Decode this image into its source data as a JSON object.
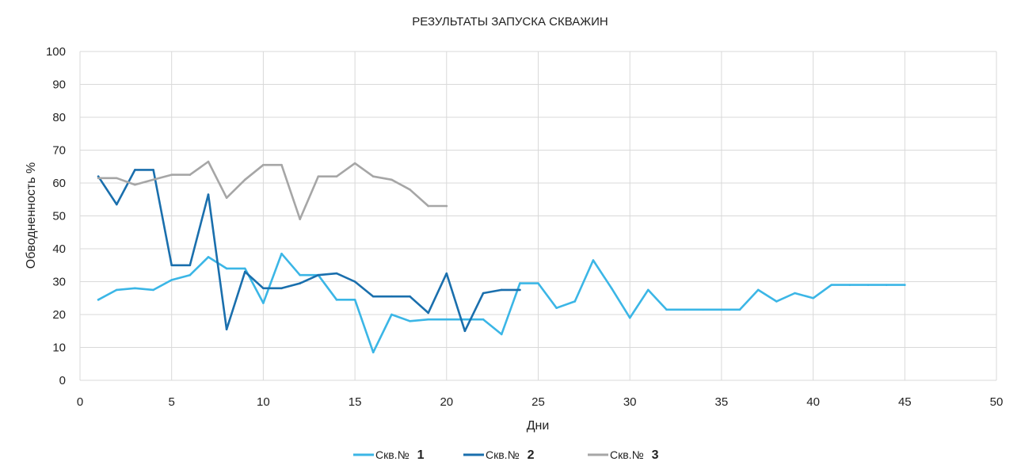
{
  "chart_data": {
    "type": "line",
    "title": "РЕЗУЛЬТАТЫ ЗАПУСКА СКВАЖИН",
    "xlabel": "Дни",
    "ylabel": "Обводненность %",
    "xlim": [
      0,
      50
    ],
    "ylim": [
      0,
      100
    ],
    "xticks": [
      0,
      5,
      10,
      15,
      20,
      25,
      30,
      35,
      40,
      45,
      50
    ],
    "yticks": [
      0,
      10,
      20,
      30,
      40,
      50,
      60,
      70,
      80,
      90,
      100
    ],
    "grid": true,
    "legend": "bottom",
    "series": [
      {
        "name_prefix": "Скв.№",
        "name_number": "1",
        "color": "#3bb6e6",
        "x": [
          1,
          2,
          3,
          4,
          5,
          6,
          7,
          8,
          9,
          10,
          11,
          12,
          13,
          14,
          15,
          16,
          17,
          18,
          19,
          20,
          21,
          22,
          23,
          24,
          25,
          26,
          27,
          28,
          29,
          30,
          31,
          32,
          33,
          34,
          35,
          36,
          37,
          38,
          39,
          40,
          41,
          42,
          43,
          44,
          45
        ],
        "y": [
          24.5,
          27.5,
          28,
          27.5,
          30.5,
          32,
          37.5,
          34,
          34,
          23.5,
          38.5,
          32,
          32,
          24.5,
          24.5,
          8.5,
          20,
          18,
          18.5,
          18.5,
          18.5,
          18.5,
          14,
          29.5,
          29.5,
          22,
          24,
          36.5,
          28,
          19,
          27.5,
          21.5,
          21.5,
          21.5,
          21.5,
          21.5,
          27.5,
          24,
          26.5,
          25,
          29,
          29,
          29,
          29,
          29
        ]
      },
      {
        "name_prefix": "Скв.№",
        "name_number": "2",
        "color": "#1a6fad",
        "x": [
          1,
          2,
          3,
          4,
          5,
          6,
          7,
          8,
          9,
          10,
          11,
          12,
          13,
          14,
          15,
          16,
          17,
          18,
          19,
          20,
          21,
          22,
          23,
          24
        ],
        "y": [
          62,
          53.5,
          64,
          64,
          35,
          35,
          56.5,
          15.5,
          33,
          28,
          28,
          29.5,
          32,
          32.5,
          30,
          25.5,
          25.5,
          25.5,
          20.5,
          32.5,
          15,
          26.5,
          27.5,
          27.5
        ]
      },
      {
        "name_prefix": "Скв.№",
        "name_number": "3",
        "color": "#a6a6a6",
        "x": [
          1,
          2,
          3,
          4,
          5,
          6,
          7,
          8,
          9,
          10,
          11,
          12,
          13,
          14,
          15,
          16,
          17,
          18,
          19,
          20
        ],
        "y": [
          61.5,
          61.5,
          59.5,
          61,
          62.5,
          62.5,
          66.5,
          55.5,
          61,
          65.5,
          65.5,
          49,
          62,
          62,
          66,
          62,
          61,
          58,
          53,
          53
        ]
      }
    ]
  }
}
